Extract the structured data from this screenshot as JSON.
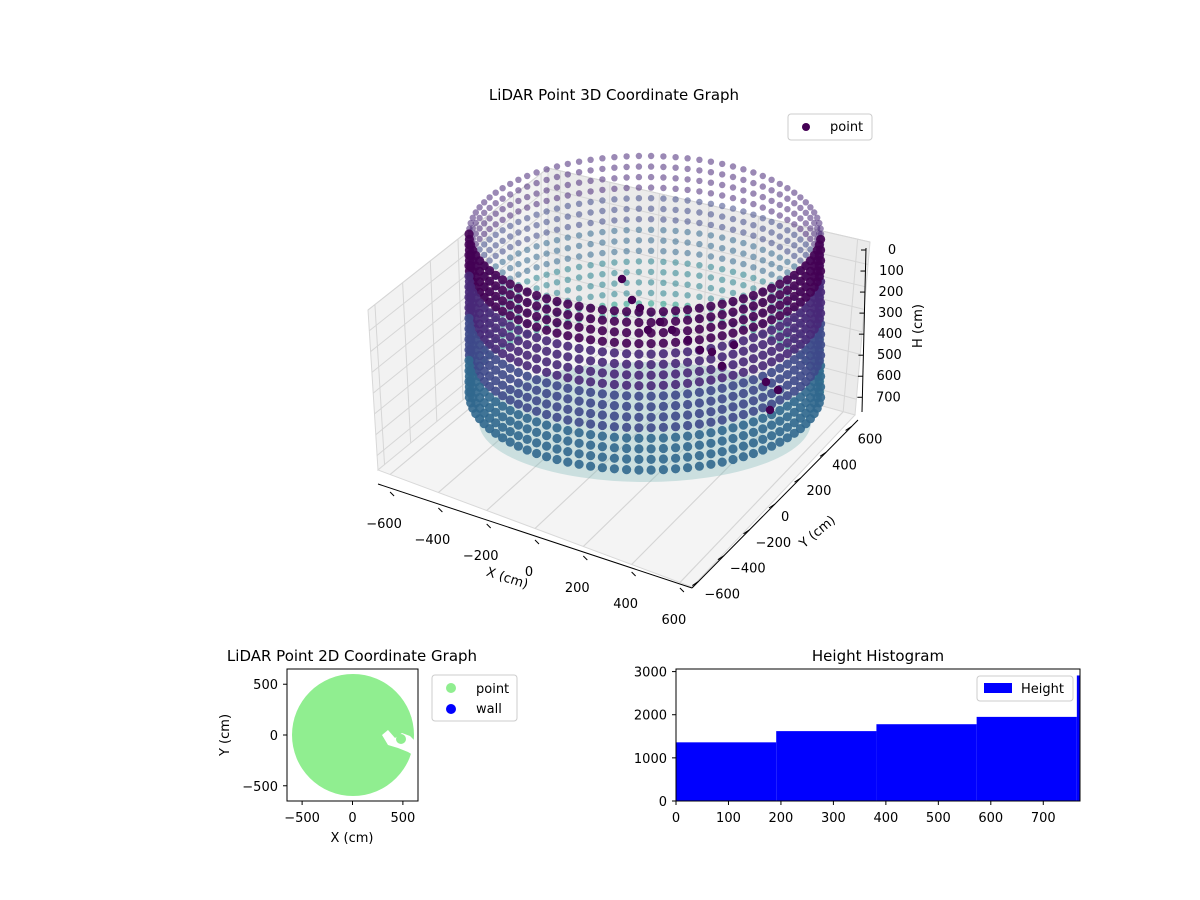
{
  "chart_data": [
    {
      "type": "scatter3d",
      "title": "LiDAR Point 3D Coordinate Graph",
      "xlabel": "X (cm)",
      "ylabel": "Y (cm)",
      "zlabel": "H (cm)",
      "xticks": [
        "−600",
        "−400",
        "−200",
        "0",
        "200",
        "400",
        "600"
      ],
      "yticks": [
        "−600",
        "−400",
        "−200",
        "0",
        "200",
        "400",
        "600"
      ],
      "zticks": [
        "0",
        "100",
        "200",
        "300",
        "400",
        "500",
        "600",
        "700"
      ],
      "xlim": [
        -650,
        650
      ],
      "ylim": [
        -650,
        650
      ],
      "zlim": [
        0,
        770
      ],
      "z_inverted": true,
      "legend": {
        "labels": [
          "point"
        ],
        "placement": "upper right"
      },
      "colormap": "viridis",
      "series": [
        {
          "name": "point",
          "shape": "cylindrical wall of points",
          "radius": 600,
          "height_range": [
            0,
            770
          ],
          "color": "#440154"
        }
      ],
      "grid": true
    },
    {
      "type": "scatter",
      "title": "LiDAR Point 2D Coordinate Graph",
      "xlabel": "X (cm)",
      "ylabel": "Y (cm)",
      "xticks": [
        "−500",
        "0",
        "500"
      ],
      "yticks": [
        "−500",
        "0",
        "500"
      ],
      "xlim": [
        -650,
        650
      ],
      "ylim": [
        -650,
        650
      ],
      "legend": {
        "labels": [
          "point",
          "wall"
        ],
        "placement": "outside right"
      },
      "series": [
        {
          "name": "point",
          "color": "#90ee90",
          "shape": "filled disk",
          "radius": 600
        },
        {
          "name": "wall",
          "color": "#0000ff",
          "values": []
        }
      ],
      "grid": false
    },
    {
      "type": "bar",
      "title": "Height Histogram",
      "xticks": [
        "0",
        "100",
        "200",
        "300",
        "400",
        "500",
        "600",
        "700"
      ],
      "yticks": [
        "0",
        "1000",
        "2000",
        "3000"
      ],
      "xlim": [
        0,
        770
      ],
      "ylim": [
        0,
        3060
      ],
      "legend": {
        "labels": [
          "Height"
        ],
        "placement": "upper right"
      },
      "series": [
        {
          "name": "Height",
          "color": "#0000ff",
          "bins": [
            {
              "x0": 0,
              "x1": 191,
              "value": 1360
            },
            {
              "x0": 191,
              "x1": 382,
              "value": 1620
            },
            {
              "x0": 382,
              "x1": 573,
              "value": 1780
            },
            {
              "x0": 573,
              "x1": 764,
              "value": 1950
            },
            {
              "x0": 764,
              "x1": 770,
              "value": 2910
            }
          ]
        }
      ],
      "grid": false
    }
  ]
}
